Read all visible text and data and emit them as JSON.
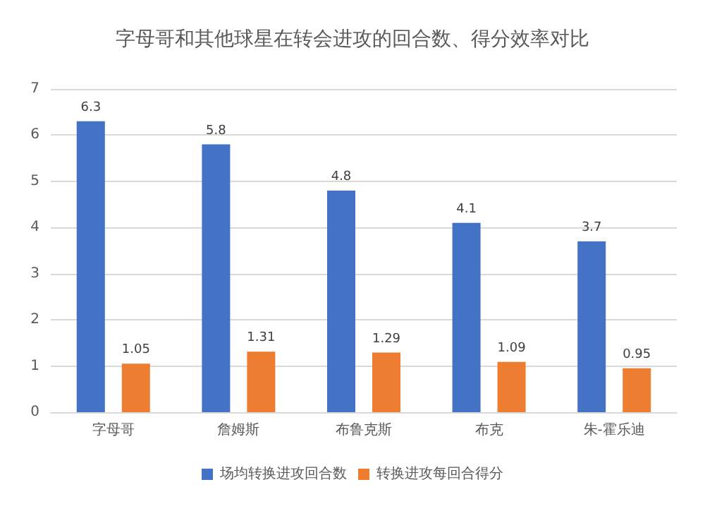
{
  "chart_data": {
    "type": "bar",
    "title": "字母哥和其他球星在转会进攻的回合数、得分效率对比",
    "categories": [
      "字母哥",
      "詹姆斯",
      "布鲁克斯",
      "布克",
      "朱-霍乐迪"
    ],
    "series": [
      {
        "name": "场均转换进攻回合数",
        "color": "#4472c4",
        "values": [
          6.3,
          5.8,
          4.8,
          4.1,
          3.7
        ]
      },
      {
        "name": "转换进攻每回合得分",
        "color": "#ed7d31",
        "values": [
          1.05,
          1.31,
          1.29,
          1.09,
          0.95
        ]
      }
    ],
    "ylim": [
      0,
      7
    ],
    "yticks": [
      0,
      1,
      2,
      3,
      4,
      5,
      6,
      7
    ],
    "grid": "y",
    "legend": "bottom",
    "data_labels": true
  }
}
